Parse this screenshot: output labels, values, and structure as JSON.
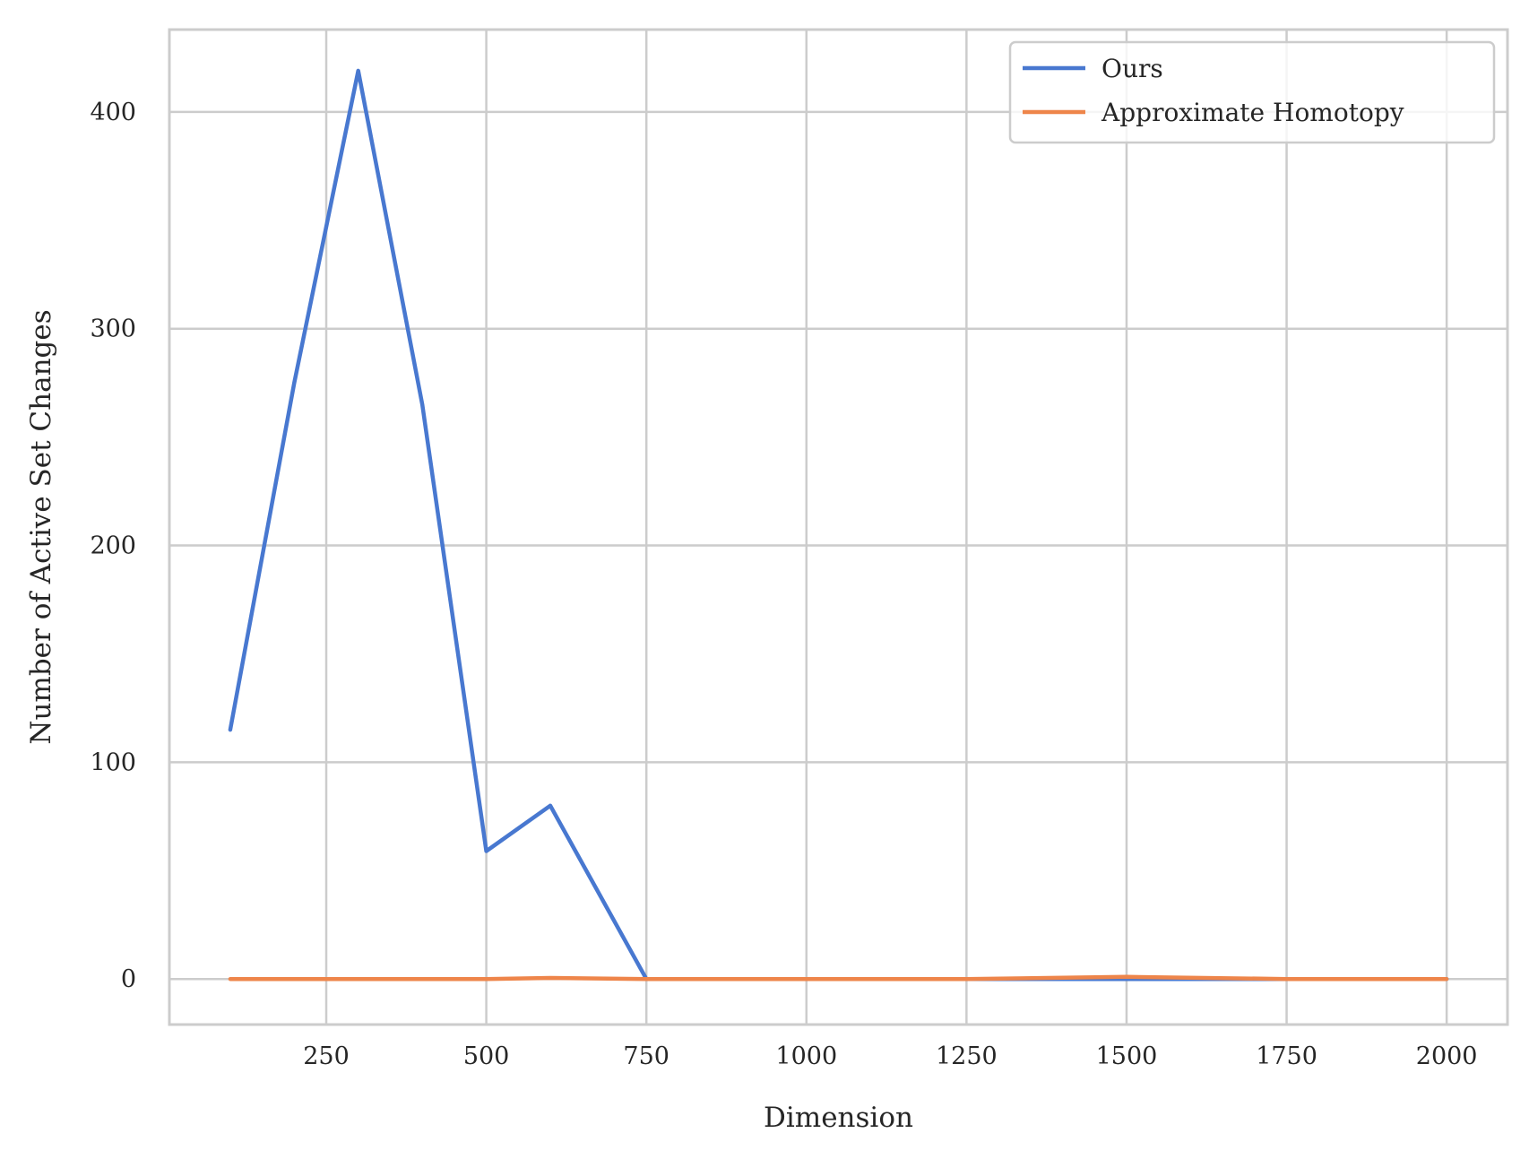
{
  "chart_data": {
    "type": "line",
    "xlabel": "Dimension",
    "ylabel": "Number of Active Set Changes",
    "xlim": [
      5,
      2095
    ],
    "ylim": [
      -21,
      438
    ],
    "xticks": [
      250,
      500,
      750,
      1000,
      1250,
      1500,
      1750,
      2000
    ],
    "yticks": [
      0,
      100,
      200,
      300,
      400
    ],
    "grid": true,
    "legend_position": "top-right",
    "x": [
      100,
      200,
      300,
      400,
      500,
      600,
      750,
      1000,
      1250,
      1500,
      1750,
      2000
    ],
    "series": [
      {
        "name": "Ours",
        "color": "#4878d0",
        "values": [
          115,
          275,
          419,
          265,
          59,
          80,
          0,
          0,
          0,
          0,
          0,
          0
        ]
      },
      {
        "name": "Approximate Homotopy",
        "color": "#ee854a",
        "values": [
          0,
          0,
          0,
          0,
          0,
          0.5,
          0,
          0,
          0,
          1,
          0,
          0
        ]
      }
    ]
  }
}
